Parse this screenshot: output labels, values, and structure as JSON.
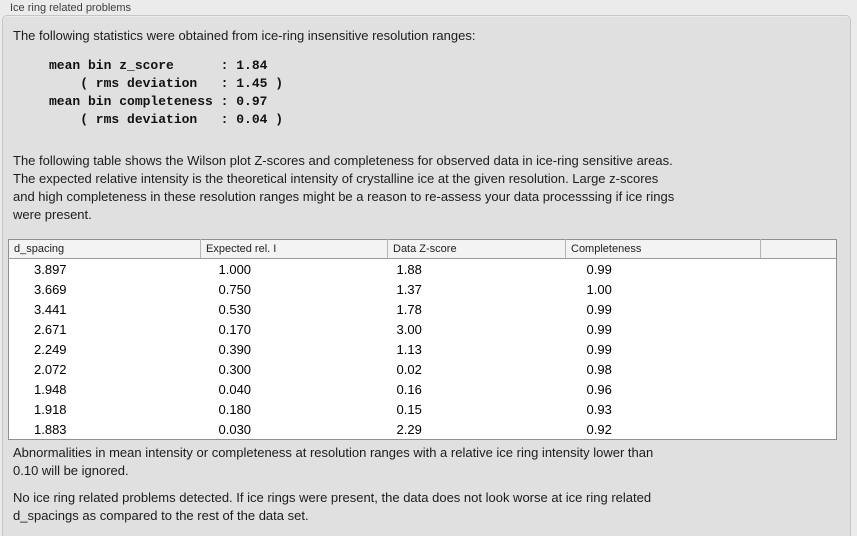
{
  "panel": {
    "title": "Ice ring related problems"
  },
  "intro": "The following statistics were obtained from ice-ring insensitive resolution ranges:",
  "stats_block": {
    "lines": [
      "mean bin z_score      : 1.84",
      "    ( rms deviation   : 1.45 )",
      "mean bin completeness : 0.97",
      "    ( rms deviation   : 0.04 )"
    ],
    "values": {
      "mean_bin_z_score": "1.84",
      "z_score_rms_deviation": "1.45",
      "mean_bin_completeness": "0.97",
      "completeness_rms_deviation": "0.04"
    }
  },
  "description": [
    "The following table shows the Wilson plot Z-scores and completeness for observed data in ice-ring sensitive areas.",
    "The expected relative intensity is the theoretical intensity of crystalline ice at the given resolution. Large z-scores",
    "and high completeness in these resolution ranges might be a reason to re-assess your data processsing if ice rings",
    "were present."
  ],
  "table": {
    "headers": [
      "d_spacing",
      "Expected rel. I",
      "Data Z-score",
      "Completeness",
      ""
    ],
    "rows": [
      [
        "3.897",
        "1.000",
        "1.88",
        "0.99"
      ],
      [
        "3.669",
        "0.750",
        "1.37",
        "1.00"
      ],
      [
        "3.441",
        "0.530",
        "1.78",
        "0.99"
      ],
      [
        "2.671",
        "0.170",
        "3.00",
        "0.99"
      ],
      [
        "2.249",
        "0.390",
        "1.13",
        "0.99"
      ],
      [
        "2.072",
        "0.300",
        "0.02",
        "0.98"
      ],
      [
        "1.948",
        "0.040",
        "0.16",
        "0.96"
      ],
      [
        "1.918",
        "0.180",
        "0.15",
        "0.93"
      ],
      [
        "1.883",
        "0.030",
        "2.29",
        "0.92"
      ]
    ]
  },
  "notes": {
    "ignore_note": [
      "Abnormalities in mean intensity or completeness at resolution ranges with a relative ice ring intensity lower than",
      "0.10 will be ignored."
    ],
    "conclusion": [
      "No ice ring related problems detected. If ice rings were present, the data does not look worse at ice ring related",
      "d_spacings as compared to the rest of the data set."
    ]
  },
  "colors": {
    "page_background": "#ebebeb",
    "panel_background": "#e0e0e0",
    "panel_border": "#c6c6c6",
    "table_background": "#ffffff",
    "table_border": "#8f8f8f",
    "header_background": "#f3f3f3",
    "text": "#1c1c1c"
  }
}
